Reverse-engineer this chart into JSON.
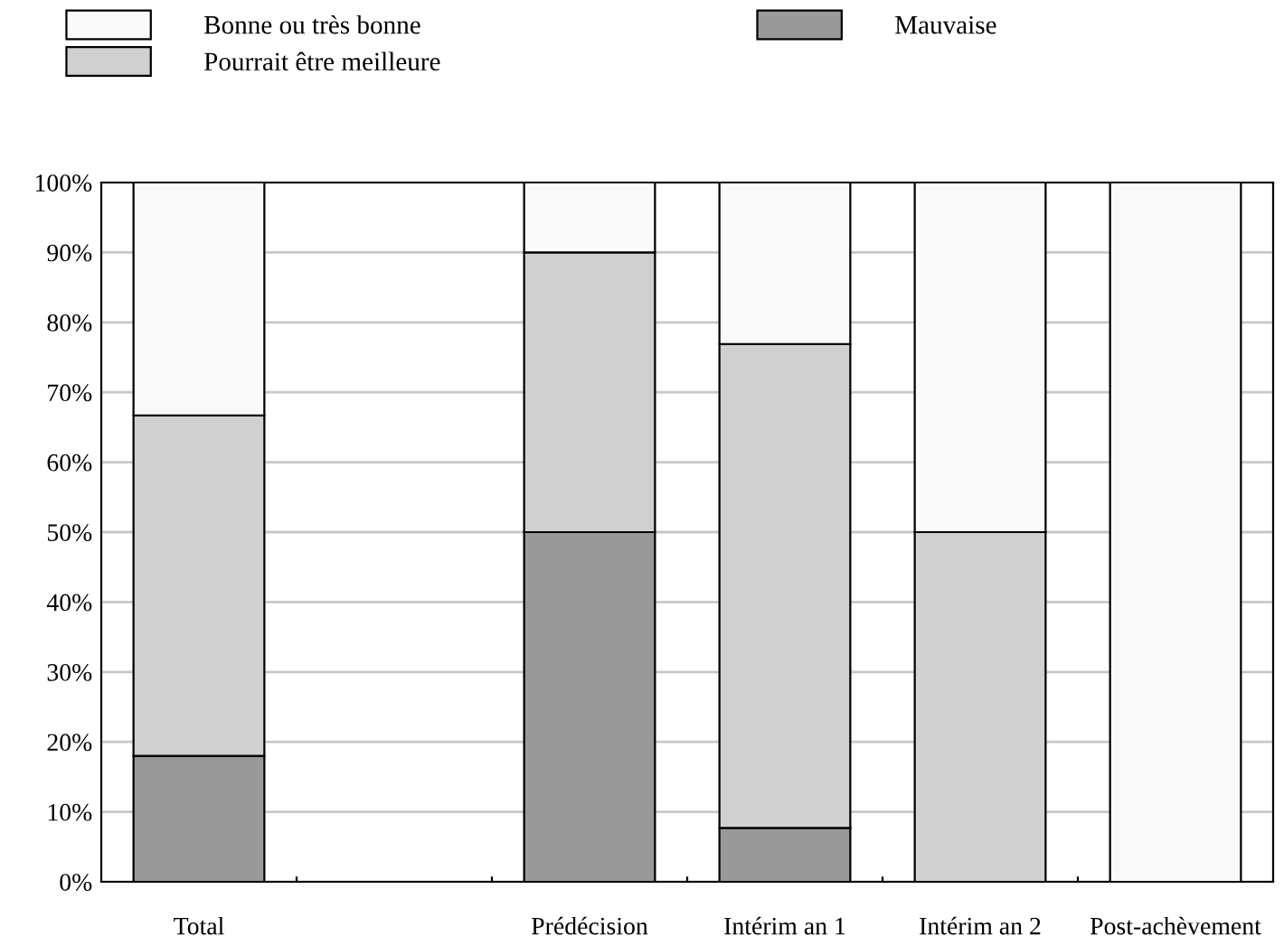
{
  "chart_data": {
    "type": "bar",
    "stacked": true,
    "categories": [
      "Total",
      null,
      "Prédécision",
      "Intérim an 1",
      "Intérim an 2",
      "Post-achèvement"
    ],
    "series": [
      {
        "name": "Mauvaise",
        "color": "#999999",
        "values": [
          18,
          null,
          50,
          7.7,
          0,
          0
        ]
      },
      {
        "name": "Pourrait être meilleure",
        "color": "#d0d0d0",
        "values": [
          48.7,
          null,
          40,
          69.2,
          50,
          0
        ]
      },
      {
        "name": "Bonne ou très bonne",
        "color": "#fafafa",
        "values": [
          33.3,
          null,
          10,
          23.1,
          50,
          100
        ]
      }
    ],
    "ylim": [
      0,
      100
    ],
    "yticks": [
      {
        "value": 0,
        "label": "0%"
      },
      {
        "value": 10,
        "label": "10%"
      },
      {
        "value": 20,
        "label": "20%"
      },
      {
        "value": 30,
        "label": "30%"
      },
      {
        "value": 40,
        "label": "40%"
      },
      {
        "value": 50,
        "label": "50%"
      },
      {
        "value": 60,
        "label": "60%"
      },
      {
        "value": 70,
        "label": "70%"
      },
      {
        "value": 80,
        "label": "80%"
      },
      {
        "value": 90,
        "label": "90%"
      },
      {
        "value": 100,
        "label": "100%"
      }
    ],
    "grid": "y",
    "legend": "top"
  }
}
